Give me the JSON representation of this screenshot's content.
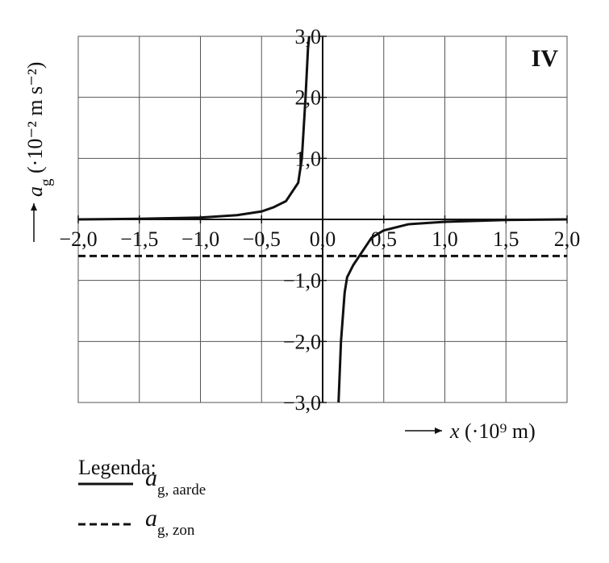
{
  "chart_data": {
    "type": "line",
    "panel_label": "IV",
    "x_label": "x (·10⁹ m)",
    "y_label": "ag (·10⁻² m s⁻²)",
    "legend_title": "Legenda:",
    "xlim": [
      -2.0,
      2.0
    ],
    "ylim": [
      -3.0,
      3.0
    ],
    "xticks": [
      {
        "value": -2.0,
        "label": "−2,0"
      },
      {
        "value": -1.5,
        "label": "−1,5"
      },
      {
        "value": -1.0,
        "label": "−1,0"
      },
      {
        "value": -0.5,
        "label": "−0,5"
      },
      {
        "value": 0,
        "label": "0,0"
      },
      {
        "value": 0.5,
        "label": "0,5"
      },
      {
        "value": 1.0,
        "label": "1,0"
      },
      {
        "value": 1.5,
        "label": "1,5"
      },
      {
        "value": 2.0,
        "label": "2,0"
      }
    ],
    "yticks": [
      {
        "value": 3.0,
        "label": "3,0"
      },
      {
        "value": 2.0,
        "label": "2,0"
      },
      {
        "value": 1.0,
        "label": "1,0"
      },
      {
        "value": -1.0,
        "label": "−1,0"
      },
      {
        "value": -2.0,
        "label": "−2,0"
      },
      {
        "value": -3.0,
        "label": "−3,0"
      }
    ],
    "grid": true,
    "series": [
      {
        "name": "ag, aarde",
        "color": "#111111",
        "dash": false,
        "x": [
          -2.0,
          -1.5,
          -1.0,
          -0.7,
          -0.5,
          -0.4,
          -0.3,
          -0.2,
          -0.17,
          -0.14,
          -0.12,
          -0.11,
          null,
          0.13,
          0.15,
          0.18,
          0.2,
          0.25,
          0.3,
          0.4,
          0.5,
          0.7,
          1.0,
          1.5,
          2.0
        ],
        "values": [
          0.0,
          0.01,
          0.03,
          0.07,
          0.13,
          0.2,
          0.3,
          0.6,
          1.0,
          2.0,
          2.8,
          3.0,
          null,
          -3.0,
          -2.0,
          -1.2,
          -0.95,
          -0.75,
          -0.6,
          -0.3,
          -0.18,
          -0.08,
          -0.04,
          -0.01,
          0.0
        ]
      },
      {
        "name": "ag, zon",
        "color": "#111111",
        "dash": true,
        "x": [
          -2.0,
          2.0
        ],
        "values": [
          -0.6,
          -0.6
        ]
      }
    ]
  }
}
